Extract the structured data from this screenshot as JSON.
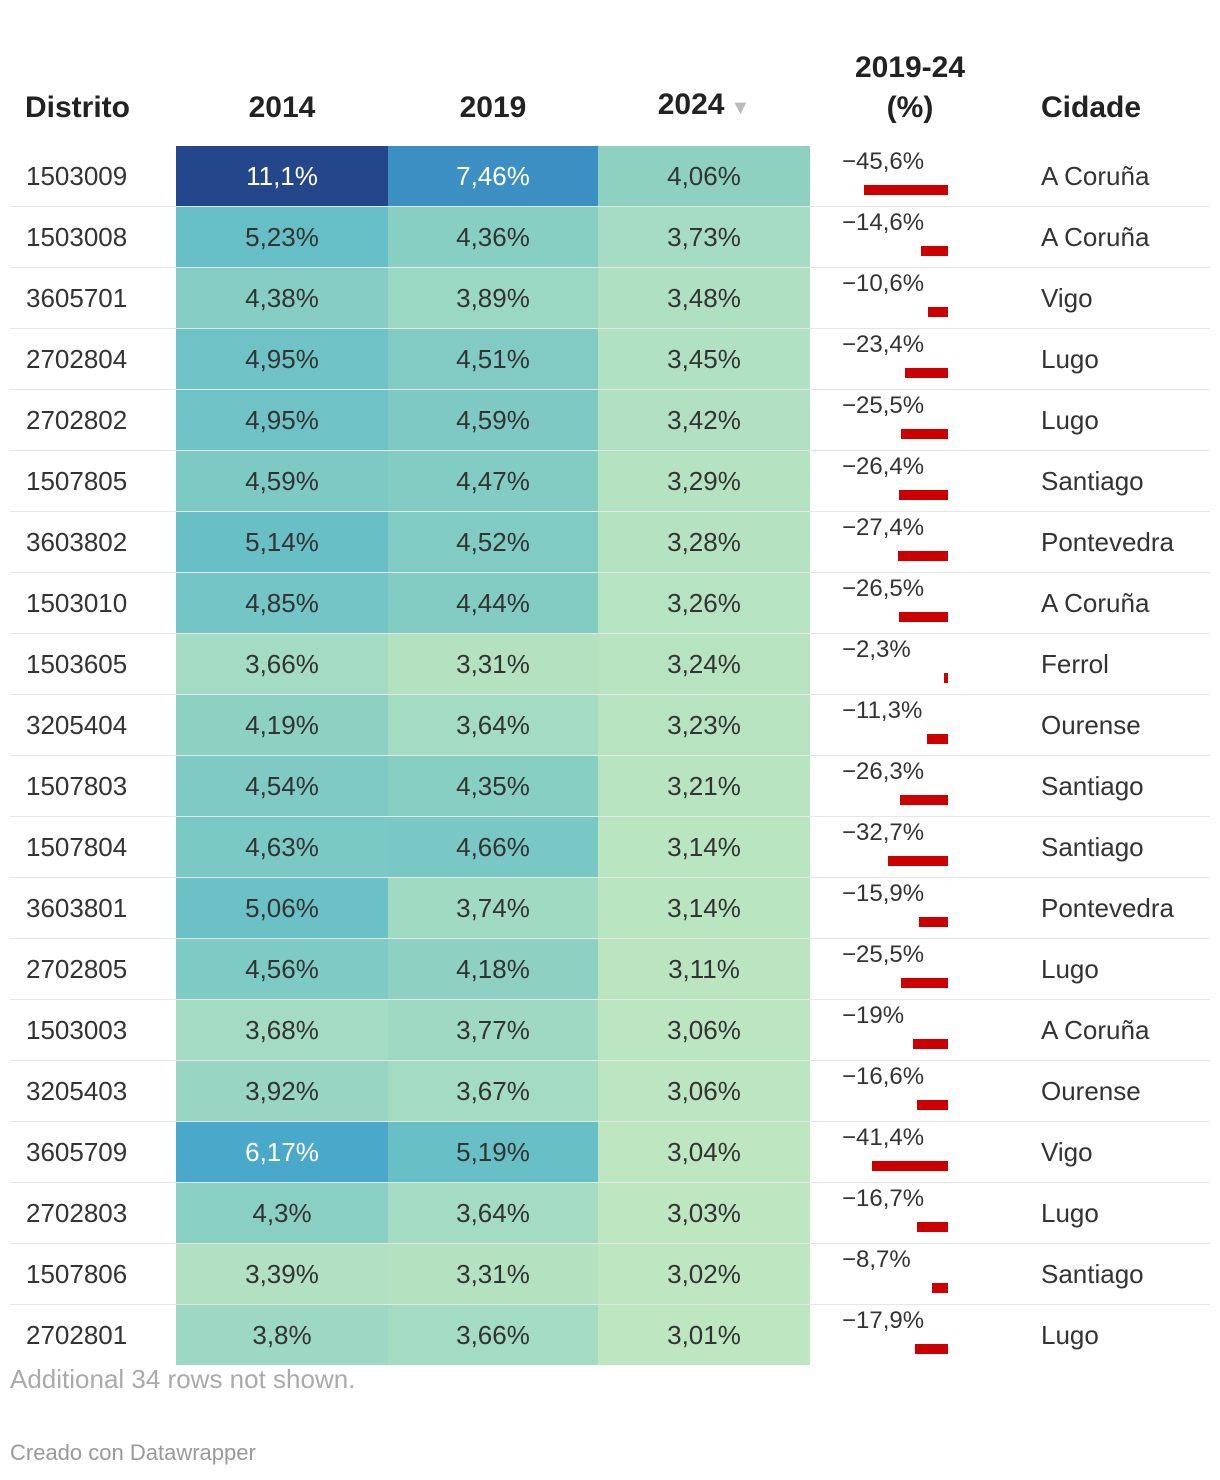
{
  "chart_data": {
    "type": "table",
    "columns": [
      "Distrito",
      "2014",
      "2019",
      "2024",
      "2019-24 (%)",
      "Cidade"
    ],
    "sort_column": "2024",
    "sort_indicator": "▼",
    "rows": [
      {
        "distrito": "1503009",
        "y2014": "11,1%",
        "y2019": "7,46%",
        "y2024": "4,06%",
        "change": "−45,6%",
        "change_value": -45.6,
        "cidade": "A Coruña",
        "c2014": "#24478c",
        "c2019": "#3b8fc2",
        "c2024": "#8ed1c0"
      },
      {
        "distrito": "1503008",
        "y2014": "5,23%",
        "y2019": "4,36%",
        "y2024": "3,73%",
        "change": "−14,6%",
        "change_value": -14.6,
        "cidade": "A Coruña",
        "c2014": "#66bec6",
        "c2019": "#87cfc3",
        "c2024": "#a5dcc3"
      },
      {
        "distrito": "3605701",
        "y2014": "4,38%",
        "y2019": "3,89%",
        "y2024": "3,48%",
        "change": "−10,6%",
        "change_value": -10.6,
        "cidade": "Vigo",
        "c2014": "#86cec3",
        "c2019": "#9ad8c3",
        "c2024": "#afe0c2"
      },
      {
        "distrito": "2702804",
        "y2014": "4,95%",
        "y2019": "4,51%",
        "y2024": "3,45%",
        "change": "−23,4%",
        "change_value": -23.4,
        "cidade": "Lugo",
        "c2014": "#6fc3c6",
        "c2019": "#81cbc4",
        "c2024": "#b0e1c2"
      },
      {
        "distrito": "2702802",
        "y2014": "4,95%",
        "y2019": "4,59%",
        "y2024": "3,42%",
        "change": "−25,5%",
        "change_value": -25.5,
        "cidade": "Lugo",
        "c2014": "#6fc3c6",
        "c2019": "#7ec9c4",
        "c2024": "#b1e1c2"
      },
      {
        "distrito": "1507805",
        "y2014": "4,59%",
        "y2019": "4,47%",
        "y2024": "3,29%",
        "change": "−26,4%",
        "change_value": -26.4,
        "cidade": "Santiago",
        "c2014": "#7dc9c4",
        "c2019": "#82ccc4",
        "c2024": "#b5e3c1"
      },
      {
        "distrito": "3603802",
        "y2014": "5,14%",
        "y2019": "4,52%",
        "y2024": "3,28%",
        "change": "−27,4%",
        "change_value": -27.4,
        "cidade": "Pontevedra",
        "c2014": "#69bfc6",
        "c2019": "#80cbc4",
        "c2024": "#b5e3c1"
      },
      {
        "distrito": "1503010",
        "y2014": "4,85%",
        "y2019": "4,44%",
        "y2024": "3,26%",
        "change": "−26,5%",
        "change_value": -26.5,
        "cidade": "A Coruña",
        "c2014": "#73c5c6",
        "c2019": "#83ccc4",
        "c2024": "#b6e3c1"
      },
      {
        "distrito": "1503605",
        "y2014": "3,66%",
        "y2019": "3,31%",
        "y2024": "3,24%",
        "change": "−2,3%",
        "change_value": -2.3,
        "cidade": "Ferrol",
        "c2014": "#a4dcc3",
        "c2019": "#b4e2c1",
        "c2024": "#b7e3c1"
      },
      {
        "distrito": "3205404",
        "y2014": "4,19%",
        "y2019": "3,64%",
        "y2024": "3,23%",
        "change": "−11,3%",
        "change_value": -11.3,
        "cidade": "Ourense",
        "c2014": "#8dd1c3",
        "c2019": "#a4dbc3",
        "c2024": "#b7e3c1"
      },
      {
        "distrito": "1507803",
        "y2014": "4,54%",
        "y2019": "4,35%",
        "y2024": "3,21%",
        "change": "−26,3%",
        "change_value": -26.3,
        "cidade": "Santiago",
        "c2014": "#7fcac4",
        "c2019": "#87cfc3",
        "c2024": "#b8e4c1"
      },
      {
        "distrito": "1507804",
        "y2014": "4,63%",
        "y2019": "4,66%",
        "y2024": "3,14%",
        "change": "−32,7%",
        "change_value": -32.7,
        "cidade": "Santiago",
        "c2014": "#7bc9c4",
        "c2019": "#7ac8c5",
        "c2024": "#bae5c1"
      },
      {
        "distrito": "3603801",
        "y2014": "5,06%",
        "y2019": "3,74%",
        "y2024": "3,14%",
        "change": "−15,9%",
        "change_value": -15.9,
        "cidade": "Pontevedra",
        "c2014": "#6bc1c6",
        "c2019": "#a1dac3",
        "c2024": "#bae5c1"
      },
      {
        "distrito": "2702805",
        "y2014": "4,56%",
        "y2019": "4,18%",
        "y2024": "3,11%",
        "change": "−25,5%",
        "change_value": -25.5,
        "cidade": "Lugo",
        "c2014": "#7ecac4",
        "c2019": "#8ed1c3",
        "c2024": "#bbe5c1"
      },
      {
        "distrito": "1503003",
        "y2014": "3,68%",
        "y2019": "3,77%",
        "y2024": "3,06%",
        "change": "−19%",
        "change_value": -19.0,
        "cidade": "A Coruña",
        "c2014": "#a3dbc3",
        "c2019": "#9fd9c3",
        "c2024": "#bce6c1"
      },
      {
        "distrito": "3205403",
        "y2014": "3,92%",
        "y2019": "3,67%",
        "y2024": "3,06%",
        "change": "−16,6%",
        "change_value": -16.6,
        "cidade": "Ourense",
        "c2014": "#98d6c3",
        "c2019": "#a3dbc3",
        "c2024": "#bce6c1"
      },
      {
        "distrito": "3605709",
        "y2014": "6,17%",
        "y2019": "5,19%",
        "y2024": "3,04%",
        "change": "−41,4%",
        "change_value": -41.4,
        "cidade": "Vigo",
        "c2014": "#4aa8ca",
        "c2019": "#68bfc6",
        "c2024": "#bde6c1"
      },
      {
        "distrito": "2702803",
        "y2014": "4,3%",
        "y2019": "3,64%",
        "y2024": "3,03%",
        "change": "−16,7%",
        "change_value": -16.7,
        "cidade": "Lugo",
        "c2014": "#89cfc3",
        "c2019": "#a4dbc3",
        "c2024": "#bde6c1"
      },
      {
        "distrito": "1507806",
        "y2014": "3,39%",
        "y2019": "3,31%",
        "y2024": "3,02%",
        "change": "−8,7%",
        "change_value": -8.7,
        "cidade": "Santiago",
        "c2014": "#b1e1c2",
        "c2019": "#b4e2c1",
        "c2024": "#bde6c1"
      },
      {
        "distrito": "2702801",
        "y2014": "3,8%",
        "y2019": "3,66%",
        "y2024": "3,01%",
        "change": "−17,9%",
        "change_value": -17.9,
        "cidade": "Lugo",
        "c2014": "#9cd8c3",
        "c2019": "#a3dbc3",
        "c2024": "#bee6c1"
      }
    ],
    "bar_color": "#cc0000",
    "bar_domain_max": 45.6
  },
  "headers": {
    "distrito": "Distrito",
    "y2014": "2014",
    "y2019": "2019",
    "y2024": "2024",
    "change_line1": "2019-24",
    "change_line2": "(%)",
    "cidade": "Cidade"
  },
  "footnote": "Additional 34 rows not shown.",
  "credit": "Creado con Datawrapper"
}
